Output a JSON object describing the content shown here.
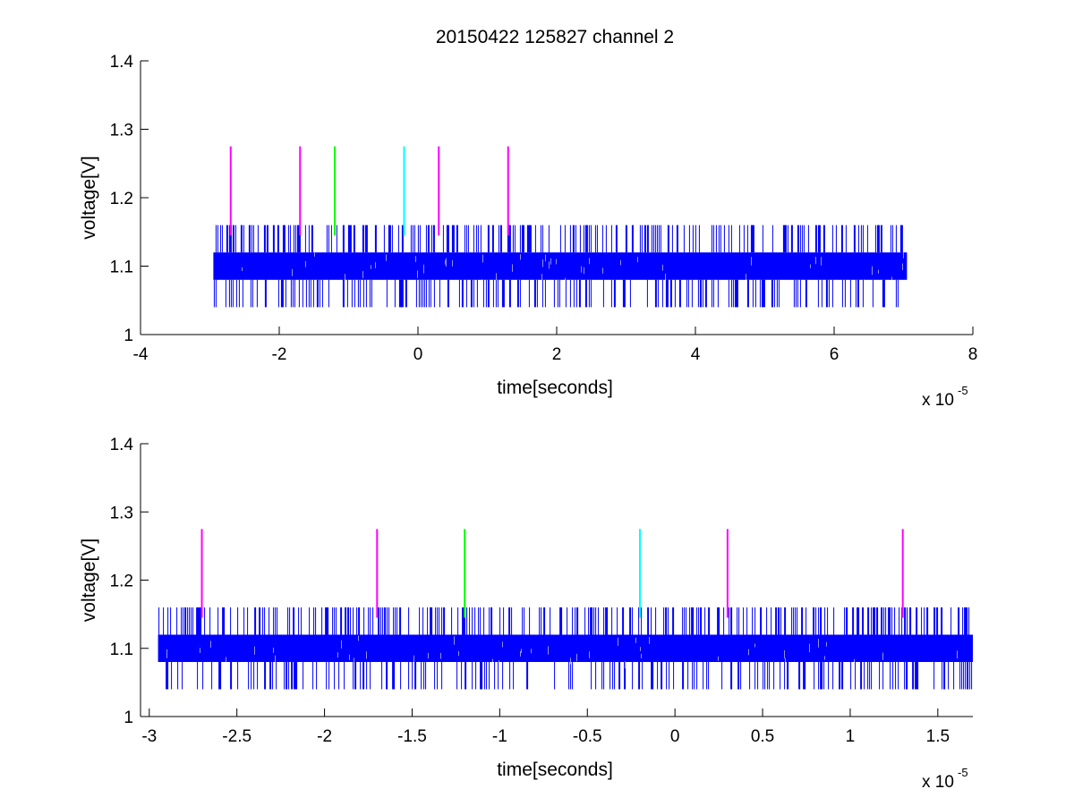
{
  "figure": {
    "title": "20150422 125827 channel 2"
  },
  "colors": {
    "signal": "#0000ff",
    "trigger_magenta": "#ff00ff",
    "trigger_green": "#00ff00",
    "trigger_cyan": "#00ffff",
    "axes": "#000000"
  },
  "chart_data": [
    {
      "type": "line",
      "name": "top-panel",
      "xlabel": "time[seconds]",
      "ylabel": "voltage[V]",
      "x_multiplier": "x 10",
      "x_multiplier_exp": "-5",
      "xlim": [
        -4,
        8
      ],
      "ylim": [
        1,
        1.4
      ],
      "xticks": [
        -4,
        -2,
        0,
        2,
        4,
        6,
        8
      ],
      "xtick_labels": [
        "-4",
        "-2",
        "0",
        "2",
        "4",
        "6",
        "8"
      ],
      "yticks": [
        1,
        1.1,
        1.2,
        1.3,
        1.4
      ],
      "ytick_labels": [
        "1",
        "1.1",
        "1.2",
        "1.3",
        "1.4"
      ],
      "grid": false,
      "signal": {
        "x_range": [
          -2.95,
          7.05
        ],
        "band": [
          1.08,
          1.12
        ],
        "spike_high": 1.16,
        "spike_low": 1.04
      },
      "markers": [
        {
          "x": -2.7,
          "y": [
            1.145,
            1.275
          ],
          "color": "magenta"
        },
        {
          "x": -1.7,
          "y": [
            1.145,
            1.275
          ],
          "color": "magenta"
        },
        {
          "x": -1.2,
          "y": [
            1.145,
            1.275
          ],
          "color": "green"
        },
        {
          "x": -0.2,
          "y": [
            1.145,
            1.275
          ],
          "color": "cyan"
        },
        {
          "x": 0.3,
          "y": [
            1.145,
            1.275
          ],
          "color": "magenta"
        },
        {
          "x": 1.3,
          "y": [
            1.145,
            1.275
          ],
          "color": "magenta"
        }
      ]
    },
    {
      "type": "line",
      "name": "bottom-panel",
      "xlabel": "time[seconds]",
      "ylabel": "voltage[V]",
      "x_multiplier": "x 10",
      "x_multiplier_exp": "-5",
      "xlim": [
        -3.05,
        1.7
      ],
      "ylim": [
        1,
        1.4
      ],
      "xticks": [
        -3,
        -2.5,
        -2,
        -1.5,
        -1,
        -0.5,
        0,
        0.5,
        1,
        1.5
      ],
      "xtick_labels": [
        "-3",
        "-2.5",
        "-2",
        "-1.5",
        "-1",
        "-0.5",
        "0",
        "0.5",
        "1",
        "1.5"
      ],
      "yticks": [
        1,
        1.1,
        1.2,
        1.3,
        1.4
      ],
      "ytick_labels": [
        "1",
        "1.1",
        "1.2",
        "1.3",
        "1.4"
      ],
      "grid": false,
      "signal": {
        "x_range": [
          -2.95,
          1.7
        ],
        "band": [
          1.08,
          1.12
        ],
        "spike_high": 1.16,
        "spike_low": 1.04
      },
      "markers": [
        {
          "x": -2.7,
          "y": [
            1.145,
            1.275
          ],
          "color": "magenta"
        },
        {
          "x": -1.7,
          "y": [
            1.145,
            1.275
          ],
          "color": "magenta"
        },
        {
          "x": -1.2,
          "y": [
            1.145,
            1.275
          ],
          "color": "green"
        },
        {
          "x": -0.2,
          "y": [
            1.145,
            1.275
          ],
          "color": "cyan"
        },
        {
          "x": 0.3,
          "y": [
            1.145,
            1.275
          ],
          "color": "magenta"
        },
        {
          "x": 1.3,
          "y": [
            1.145,
            1.275
          ],
          "color": "magenta"
        }
      ]
    }
  ]
}
